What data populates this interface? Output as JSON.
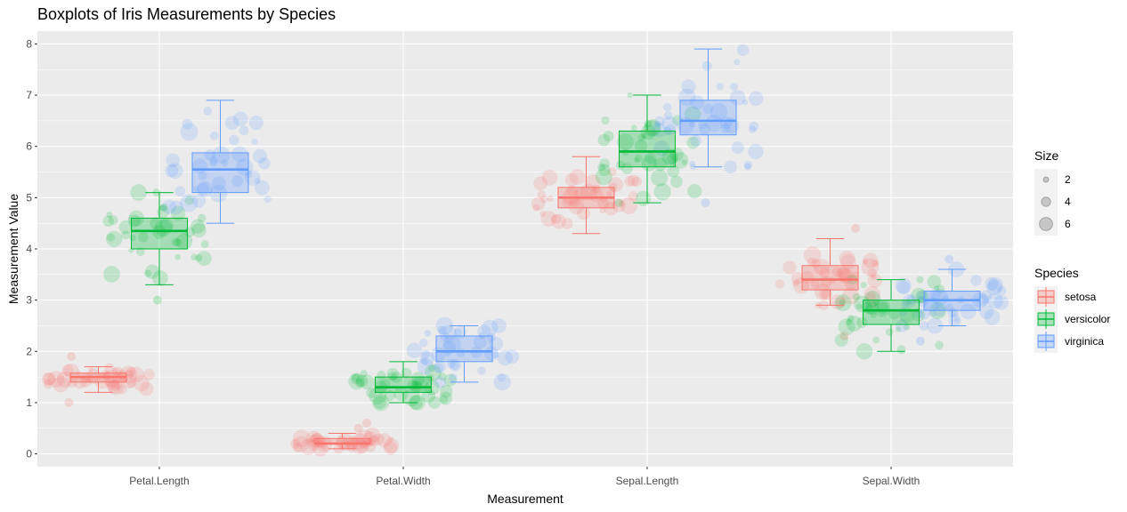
{
  "chart_data": {
    "type": "boxplot",
    "title": "Boxplots of Iris Measurements by Species",
    "xlabel": "Measurement",
    "ylabel": "Measurement Value",
    "ylim": [
      -0.25,
      8.25
    ],
    "yticks": [
      0,
      1,
      2,
      3,
      4,
      5,
      6,
      7,
      8
    ],
    "categories": [
      "Petal.Length",
      "Petal.Width",
      "Sepal.Length",
      "Sepal.Width"
    ],
    "grid": true,
    "legend_position": "right",
    "series": [
      {
        "name": "setosa",
        "color": "#F8766D",
        "boxes": [
          {
            "category": "Petal.Length",
            "whisker_low": 1.2,
            "q1": 1.4,
            "median": 1.5,
            "q3": 1.575,
            "whisker_high": 1.7,
            "outliers": [
              1.0,
              1.9
            ]
          },
          {
            "category": "Petal.Width",
            "whisker_low": 0.1,
            "q1": 0.2,
            "median": 0.2,
            "q3": 0.3,
            "whisker_high": 0.4,
            "outliers": [
              0.5,
              0.6
            ]
          },
          {
            "category": "Sepal.Length",
            "whisker_low": 4.3,
            "q1": 4.8,
            "median": 5.0,
            "q3": 5.2,
            "whisker_high": 5.8,
            "outliers": []
          },
          {
            "category": "Sepal.Width",
            "whisker_low": 2.9,
            "q1": 3.2,
            "median": 3.4,
            "q3": 3.675,
            "whisker_high": 4.2,
            "outliers": [
              2.3,
              4.4
            ]
          }
        ]
      },
      {
        "name": "versicolor",
        "color": "#00BA38",
        "boxes": [
          {
            "category": "Petal.Length",
            "whisker_low": 3.3,
            "q1": 4.0,
            "median": 4.35,
            "q3": 4.6,
            "whisker_high": 5.1,
            "outliers": [
              3.0
            ]
          },
          {
            "category": "Petal.Width",
            "whisker_low": 1.0,
            "q1": 1.2,
            "median": 1.3,
            "q3": 1.5,
            "whisker_high": 1.8,
            "outliers": []
          },
          {
            "category": "Sepal.Length",
            "whisker_low": 4.9,
            "q1": 5.6,
            "median": 5.9,
            "q3": 6.3,
            "whisker_high": 7.0,
            "outliers": []
          },
          {
            "category": "Sepal.Width",
            "whisker_low": 2.0,
            "q1": 2.525,
            "median": 2.8,
            "q3": 3.0,
            "whisker_high": 3.4,
            "outliers": []
          }
        ]
      },
      {
        "name": "virginica",
        "color": "#619CFF",
        "boxes": [
          {
            "category": "Petal.Length",
            "whisker_low": 4.5,
            "q1": 5.1,
            "median": 5.55,
            "q3": 5.875,
            "whisker_high": 6.9,
            "outliers": []
          },
          {
            "category": "Petal.Width",
            "whisker_low": 1.4,
            "q1": 1.8,
            "median": 2.0,
            "q3": 2.3,
            "whisker_high": 2.5,
            "outliers": []
          },
          {
            "category": "Sepal.Length",
            "whisker_low": 5.6,
            "q1": 6.225,
            "median": 6.5,
            "q3": 6.9,
            "whisker_high": 7.9,
            "outliers": [
              4.9
            ]
          },
          {
            "category": "Sepal.Width",
            "whisker_low": 2.5,
            "q1": 2.8,
            "median": 3.0,
            "q3": 3.175,
            "whisker_high": 3.6,
            "outliers": [
              2.2,
              3.8
            ]
          }
        ]
      }
    ],
    "jitter_points": true,
    "size_legend": {
      "title": "Size",
      "values": [
        2,
        4,
        6
      ]
    },
    "species_legend": {
      "title": "Species",
      "labels": [
        "setosa",
        "versicolor",
        "virginica"
      ]
    }
  }
}
